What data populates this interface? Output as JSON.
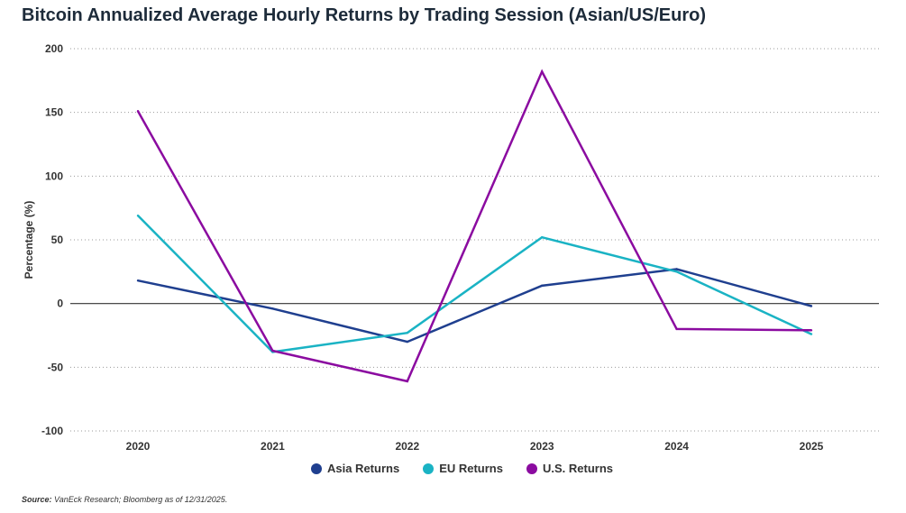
{
  "chart_data": {
    "type": "line",
    "title": "Bitcoin Annualized Average Hourly Returns by Trading Session (Asian/US/Euro)",
    "xlabel": "",
    "ylabel": "Percentage (%)",
    "categories": [
      "2020",
      "2021",
      "2022",
      "2023",
      "2024",
      "2025"
    ],
    "y_ticks": [
      "200",
      "150",
      "100",
      "50",
      "0",
      "-50",
      "-100"
    ],
    "ylim": [
      -100,
      200
    ],
    "grid": "horizontal-dotted",
    "legend_position": "bottom-center",
    "series": [
      {
        "name": "Asia Returns",
        "color": "#1f3f8f",
        "values": [
          18,
          -4,
          -30,
          14,
          27,
          -2
        ]
      },
      {
        "name": "EU Returns",
        "color": "#1ab3c4",
        "values": [
          69,
          -38,
          -23,
          52,
          25,
          -24
        ]
      },
      {
        "name": "U.S. Returns",
        "color": "#8b0ba0",
        "values": [
          151,
          -37,
          -61,
          182,
          -20,
          -21
        ]
      }
    ],
    "source_label": "Source:",
    "source_text": "VanEck Research; Bloomberg as of 12/31/2025."
  }
}
